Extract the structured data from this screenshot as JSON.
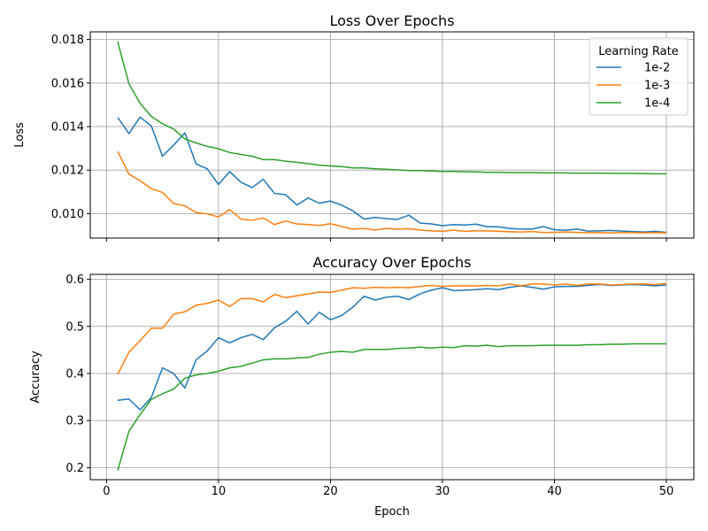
{
  "chart_data": [
    {
      "type": "line",
      "title": "Loss Over Epochs",
      "xlabel": "",
      "ylabel": "Loss",
      "ylim": [
        0.00888,
        0.01835
      ],
      "xlim": [
        -1.45,
        52.45
      ],
      "yticks": [
        0.01,
        0.012,
        0.014,
        0.016,
        0.018
      ],
      "ytick_labels": [
        "0.010",
        "0.012",
        "0.014",
        "0.016",
        "0.018"
      ],
      "xticks": [
        0,
        10,
        20,
        30,
        40,
        50
      ],
      "grid": true,
      "legend": {
        "title": "Learning Rate",
        "placement": "top-right"
      },
      "x": [
        1,
        2,
        3,
        4,
        5,
        6,
        7,
        8,
        9,
        10,
        11,
        12,
        13,
        14,
        15,
        16,
        17,
        18,
        19,
        20,
        21,
        22,
        23,
        24,
        25,
        26,
        27,
        28,
        29,
        30,
        31,
        32,
        33,
        34,
        35,
        36,
        37,
        38,
        39,
        40,
        41,
        42,
        43,
        44,
        45,
        46,
        47,
        48,
        49,
        50
      ],
      "series": [
        {
          "name": "1e-2",
          "color": "#1f77b4",
          "values": [
            0.01442,
            0.01368,
            0.01443,
            0.01403,
            0.01264,
            0.01315,
            0.01371,
            0.01228,
            0.01206,
            0.01134,
            0.01193,
            0.01145,
            0.0112,
            0.01158,
            0.01093,
            0.01087,
            0.0104,
            0.01072,
            0.01048,
            0.01058,
            0.01039,
            0.01013,
            0.00975,
            0.00983,
            0.00977,
            0.00974,
            0.00993,
            0.00957,
            0.00953,
            0.00945,
            0.0095,
            0.00948,
            0.00952,
            0.0094,
            0.0094,
            0.00932,
            0.00929,
            0.00929,
            0.00941,
            0.00926,
            0.00924,
            0.00929,
            0.0092,
            0.00921,
            0.00923,
            0.0092,
            0.00918,
            0.00916,
            0.00919,
            0.00914
          ]
        },
        {
          "name": "1e-3",
          "color": "#ff7f0e",
          "values": [
            0.01286,
            0.01182,
            0.01151,
            0.01115,
            0.01097,
            0.01047,
            0.01036,
            0.01005,
            0.00999,
            0.00985,
            0.01019,
            0.00975,
            0.0097,
            0.0098,
            0.0095,
            0.00966,
            0.00953,
            0.0095,
            0.00946,
            0.00954,
            0.00941,
            0.00929,
            0.00932,
            0.00925,
            0.00932,
            0.00929,
            0.00931,
            0.00925,
            0.00921,
            0.00919,
            0.00924,
            0.00919,
            0.00921,
            0.00921,
            0.00919,
            0.00917,
            0.00916,
            0.00918,
            0.00914,
            0.00914,
            0.00916,
            0.00914,
            0.00913,
            0.00913,
            0.00912,
            0.00913,
            0.00913,
            0.00912,
            0.00913,
            0.00912
          ]
        },
        {
          "name": "1e-4",
          "color": "#2ca02c",
          "values": [
            0.0179,
            0.01597,
            0.01507,
            0.01447,
            0.01413,
            0.01388,
            0.01343,
            0.01325,
            0.01309,
            0.01298,
            0.01281,
            0.01272,
            0.01264,
            0.01248,
            0.01248,
            0.01241,
            0.01236,
            0.0123,
            0.01223,
            0.01219,
            0.01216,
            0.0121,
            0.0121,
            0.01206,
            0.01204,
            0.01201,
            0.01198,
            0.01198,
            0.01196,
            0.01194,
            0.01194,
            0.01193,
            0.01192,
            0.0119,
            0.0119,
            0.01189,
            0.01189,
            0.01189,
            0.01188,
            0.01187,
            0.01187,
            0.01186,
            0.01186,
            0.01186,
            0.01185,
            0.01185,
            0.01185,
            0.01184,
            0.01183,
            0.01183
          ]
        }
      ]
    },
    {
      "type": "line",
      "title": "Accuracy Over Epochs",
      "xlabel": "Epoch",
      "ylabel": "Accuracy",
      "ylim": [
        0.1745,
        0.6105
      ],
      "xlim": [
        -1.45,
        52.45
      ],
      "yticks": [
        0.2,
        0.3,
        0.4,
        0.5,
        0.6
      ],
      "ytick_labels": [
        "0.2",
        "0.3",
        "0.4",
        "0.5",
        "0.6"
      ],
      "xticks": [
        0,
        10,
        20,
        30,
        40,
        50
      ],
      "xtick_labels": [
        "0",
        "10",
        "20",
        "30",
        "40",
        "50"
      ],
      "grid": true,
      "x": [
        1,
        2,
        3,
        4,
        5,
        6,
        7,
        8,
        9,
        10,
        11,
        12,
        13,
        14,
        15,
        16,
        17,
        18,
        19,
        20,
        21,
        22,
        23,
        24,
        25,
        26,
        27,
        28,
        29,
        30,
        31,
        32,
        33,
        34,
        35,
        36,
        37,
        38,
        39,
        40,
        41,
        42,
        43,
        44,
        45,
        46,
        47,
        48,
        49,
        50
      ],
      "series": [
        {
          "name": "1e-2",
          "color": "#1f77b4",
          "values": [
            0.343,
            0.346,
            0.323,
            0.349,
            0.412,
            0.4,
            0.369,
            0.429,
            0.448,
            0.476,
            0.465,
            0.476,
            0.483,
            0.472,
            0.497,
            0.511,
            0.532,
            0.505,
            0.53,
            0.514,
            0.523,
            0.541,
            0.564,
            0.556,
            0.562,
            0.564,
            0.557,
            0.569,
            0.577,
            0.582,
            0.576,
            0.577,
            0.578,
            0.58,
            0.578,
            0.583,
            0.586,
            0.583,
            0.579,
            0.584,
            0.585,
            0.585,
            0.587,
            0.589,
            0.587,
            0.588,
            0.589,
            0.588,
            0.586,
            0.588
          ]
        },
        {
          "name": "1e-3",
          "color": "#ff7f0e",
          "values": [
            0.398,
            0.445,
            0.47,
            0.496,
            0.496,
            0.526,
            0.531,
            0.545,
            0.549,
            0.556,
            0.542,
            0.559,
            0.559,
            0.552,
            0.568,
            0.561,
            0.565,
            0.569,
            0.573,
            0.572,
            0.577,
            0.582,
            0.581,
            0.583,
            0.582,
            0.583,
            0.582,
            0.585,
            0.587,
            0.585,
            0.586,
            0.586,
            0.586,
            0.587,
            0.586,
            0.59,
            0.586,
            0.59,
            0.59,
            0.588,
            0.59,
            0.587,
            0.59,
            0.59,
            0.588,
            0.589,
            0.59,
            0.59,
            0.589,
            0.591
          ]
        },
        {
          "name": "1e-4",
          "color": "#2ca02c",
          "values": [
            0.194,
            0.277,
            0.313,
            0.345,
            0.357,
            0.367,
            0.39,
            0.397,
            0.4,
            0.405,
            0.412,
            0.415,
            0.422,
            0.429,
            0.431,
            0.431,
            0.433,
            0.434,
            0.441,
            0.445,
            0.447,
            0.445,
            0.451,
            0.451,
            0.451,
            0.453,
            0.454,
            0.456,
            0.454,
            0.456,
            0.455,
            0.459,
            0.458,
            0.46,
            0.457,
            0.459,
            0.459,
            0.459,
            0.46,
            0.46,
            0.46,
            0.46,
            0.461,
            0.461,
            0.462,
            0.462,
            0.463,
            0.463,
            0.463,
            0.463
          ]
        }
      ]
    }
  ]
}
